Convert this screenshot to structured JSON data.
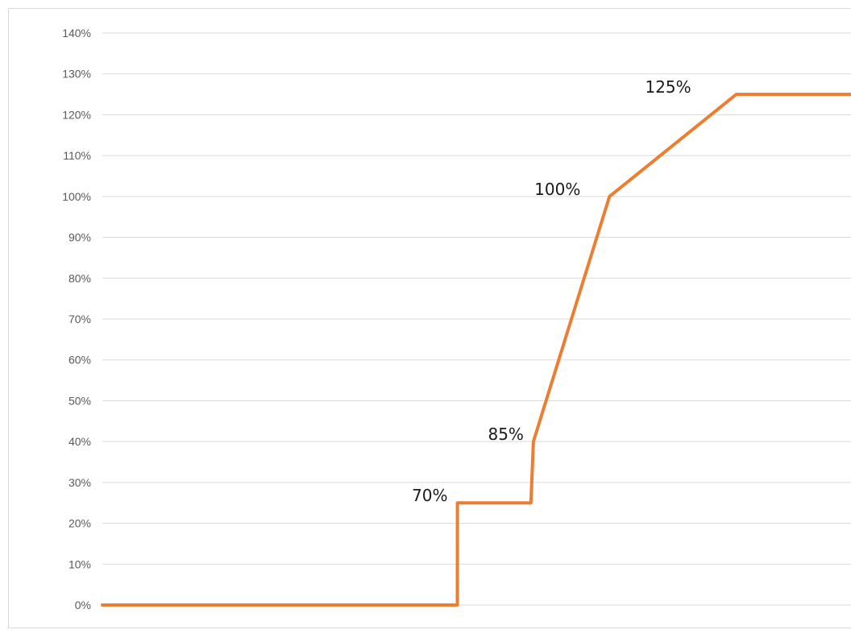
{
  "chart_data": {
    "type": "line",
    "title": "",
    "xlabel": "",
    "ylabel": "",
    "ylim": [
      0,
      1.4
    ],
    "y_ticks": [
      {
        "value": 0.0,
        "label": "0%"
      },
      {
        "value": 0.1,
        "label": "10%"
      },
      {
        "value": 0.2,
        "label": "20%"
      },
      {
        "value": 0.3,
        "label": "30%"
      },
      {
        "value": 0.4,
        "label": "40%"
      },
      {
        "value": 0.5,
        "label": "50%"
      },
      {
        "value": 0.6,
        "label": "60%"
      },
      {
        "value": 0.7,
        "label": "70%"
      },
      {
        "value": 0.8,
        "label": "80%"
      },
      {
        "value": 0.9,
        "label": "90%"
      },
      {
        "value": 1.0,
        "label": "100%"
      },
      {
        "value": 1.1,
        "label": "110%"
      },
      {
        "value": 1.2,
        "label": "120%"
      },
      {
        "value": 1.3,
        "label": "130%"
      },
      {
        "value": 1.4,
        "label": "140%"
      }
    ],
    "grid": true,
    "legend": "none",
    "xlim": [
      0,
      150
    ],
    "series": [
      {
        "color": "#ed7d31",
        "x": [
          0,
          70,
          70.01,
          84.5,
          85,
          100,
          125,
          150
        ],
        "y": [
          0,
          0,
          0.25,
          0.25,
          0.4,
          1.0,
          1.25,
          1.25
        ]
      }
    ],
    "annotations": [
      {
        "text": "70%",
        "x": 70,
        "y": 0.25
      },
      {
        "text": "85%",
        "x": 85,
        "y": 0.4
      },
      {
        "text": "100%",
        "x": 100,
        "y": 1.0
      },
      {
        "text": "125%",
        "x": 125,
        "y": 1.25
      }
    ]
  }
}
